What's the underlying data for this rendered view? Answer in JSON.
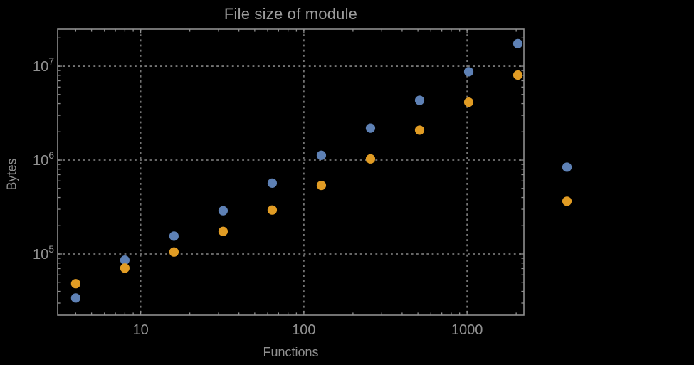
{
  "title": "File size of module",
  "colors": {
    "background": "#000000",
    "frame": "#8f8f8f",
    "gridline": "#757575",
    "tick_text": "#919191",
    "title_text": "#9c9c9c",
    "axis_label_text": "#8f8f8f",
    "series_blue": "#5e81b5",
    "series_orange": "#e19c24"
  },
  "chart_data": {
    "type": "scatter",
    "title": "File size of module",
    "xlabel": "Functions",
    "ylabel": "Bytes",
    "xscale": "log",
    "yscale": "log",
    "grid": true,
    "grid_style": "dotted",
    "legend": "none",
    "xlim": [
      3.1,
      2230
    ],
    "ylim": [
      22300,
      24800000
    ],
    "x_ticks": [
      10,
      100,
      1000
    ],
    "x_tick_labels": [
      "10",
      "100",
      "1000"
    ],
    "y_ticks": [
      100000,
      1000000,
      10000000
    ],
    "y_tick_exponents": [
      5,
      6,
      7
    ],
    "y_tick_base": "10",
    "x": [
      4,
      8,
      16,
      32,
      64,
      128,
      256,
      512,
      1024,
      2048,
      4096
    ],
    "series": [
      {
        "name": "blue-series",
        "color": "#5e81b5",
        "values": [
          34000,
          86000,
          155000,
          289000,
          569000,
          1125000,
          2190000,
          4330000,
          8730000,
          17400000,
          841000
        ]
      },
      {
        "name": "orange-series",
        "color": "#e19c24",
        "values": [
          48300,
          70800,
          105000,
          174000,
          294000,
          538000,
          1030000,
          2085000,
          4140000,
          8050000,
          365000
        ]
      }
    ]
  }
}
